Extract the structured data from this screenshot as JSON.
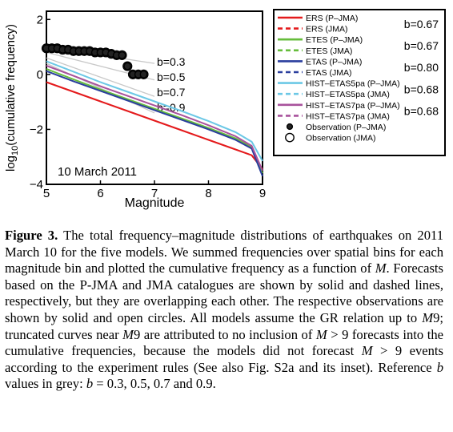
{
  "chart_data": {
    "type": "line",
    "xlabel": "Magnitude",
    "ylabel_pre": "log",
    "ylabel_sub": "10",
    "ylabel_post": "(cumulative frequency)",
    "annotation": "10 March 2011",
    "xlim": [
      5,
      9
    ],
    "ylim": [
      -4,
      2.3
    ],
    "xticks": [
      5,
      6,
      7,
      8,
      9
    ],
    "yticks": [
      {
        "v": 2,
        "label": "2"
      },
      {
        "v": 0,
        "label": "0"
      },
      {
        "v": -2,
        "label": "−2"
      },
      {
        "v": -4,
        "label": "−4"
      }
    ],
    "grid": false,
    "legend_position": "right",
    "reference_lines": [
      {
        "b": 0.3,
        "label": "b=0.3",
        "x": [
          5,
          7.0
        ],
        "y": [
          1.0,
          0.4
        ]
      },
      {
        "b": 0.5,
        "label": "b=0.5",
        "x": [
          5,
          7.0
        ],
        "y": [
          0.8,
          -0.2
        ]
      },
      {
        "b": 0.7,
        "label": "b=0.7",
        "x": [
          5,
          7.0
        ],
        "y": [
          0.6,
          -0.8
        ]
      },
      {
        "b": 0.9,
        "label": "b=0.9",
        "x": [
          5,
          7.0
        ],
        "y": [
          0.4,
          -1.4
        ]
      }
    ],
    "series": [
      {
        "name": "ERS (P–JMA)",
        "color": "#e41a1c",
        "dash": false,
        "x": [
          5.0,
          5.5,
          6.0,
          6.5,
          7.0,
          7.5,
          8.0,
          8.5,
          8.8,
          9.0
        ],
        "y": [
          -0.28,
          -0.63,
          -0.98,
          -1.33,
          -1.68,
          -2.03,
          -2.38,
          -2.73,
          -2.94,
          -3.45
        ]
      },
      {
        "name": "ERS (JMA)",
        "color": "#e41a1c",
        "dash": true,
        "x": [
          5.0,
          5.5,
          6.0,
          6.5,
          7.0,
          7.5,
          8.0,
          8.5,
          8.8,
          9.0
        ],
        "y": [
          -0.28,
          -0.63,
          -0.98,
          -1.33,
          -1.68,
          -2.03,
          -2.38,
          -2.73,
          -2.94,
          -3.45
        ]
      },
      {
        "name": "ETES (P–JMA)",
        "color": "#66bd3c",
        "dash": false,
        "x": [
          5.0,
          5.5,
          6.0,
          6.5,
          7.0,
          7.5,
          8.0,
          8.5,
          8.8,
          9.0
        ],
        "y": [
          0.2,
          -0.18,
          -0.55,
          -0.9,
          -1.25,
          -1.6,
          -1.95,
          -2.33,
          -2.65,
          -3.6
        ]
      },
      {
        "name": "ETES (JMA)",
        "color": "#66bd3c",
        "dash": true,
        "x": [
          5.0,
          5.5,
          6.0,
          6.5,
          7.0,
          7.5,
          8.0,
          8.5,
          8.8,
          9.0
        ],
        "y": [
          0.2,
          -0.18,
          -0.55,
          -0.9,
          -1.25,
          -1.6,
          -1.95,
          -2.33,
          -2.65,
          -3.6
        ]
      },
      {
        "name": "ETAS (P–JMA)",
        "color": "#2b3f9e",
        "dash": false,
        "x": [
          5.0,
          5.5,
          6.0,
          6.5,
          7.0,
          7.5,
          8.0,
          8.5,
          8.8,
          9.0
        ],
        "y": [
          0.12,
          -0.25,
          -0.6,
          -0.95,
          -1.3,
          -1.65,
          -2.0,
          -2.38,
          -2.7,
          -3.7
        ]
      },
      {
        "name": "ETAS (JMA)",
        "color": "#2b3f9e",
        "dash": true,
        "x": [
          5.0,
          5.5,
          6.0,
          6.5,
          7.0,
          7.5,
          8.0,
          8.5,
          8.8,
          9.0
        ],
        "y": [
          0.12,
          -0.25,
          -0.6,
          -0.95,
          -1.3,
          -1.65,
          -2.0,
          -2.38,
          -2.7,
          -3.7
        ]
      },
      {
        "name": "HIST–ETAS5pa (P–JMA)",
        "color": "#6cc8e6",
        "dash": false,
        "x": [
          5.0,
          5.5,
          6.0,
          6.5,
          7.0,
          7.5,
          8.0,
          8.5,
          8.8,
          9.0
        ],
        "y": [
          0.48,
          0.1,
          -0.28,
          -0.63,
          -0.98,
          -1.33,
          -1.7,
          -2.1,
          -2.45,
          -3.15
        ]
      },
      {
        "name": "HIST–ETAS5pa (JMA)",
        "color": "#6cc8e6",
        "dash": true,
        "x": [
          5.0,
          5.5,
          6.0,
          6.5,
          7.0,
          7.5,
          8.0,
          8.5,
          8.8,
          9.0
        ],
        "y": [
          0.48,
          0.1,
          -0.28,
          -0.63,
          -0.98,
          -1.33,
          -1.7,
          -2.1,
          -2.45,
          -3.15
        ]
      },
      {
        "name": "HIST–ETAS7pa (P–JMA)",
        "color": "#a8529c",
        "dash": false,
        "x": [
          5.0,
          5.5,
          6.0,
          6.5,
          7.0,
          7.5,
          8.0,
          8.5,
          8.8,
          9.0
        ],
        "y": [
          0.32,
          -0.05,
          -0.43,
          -0.78,
          -1.13,
          -1.48,
          -1.85,
          -2.25,
          -2.6,
          -3.5
        ]
      },
      {
        "name": "HIST–ETAS7pa (JMA)",
        "color": "#a8529c",
        "dash": true,
        "x": [
          5.0,
          5.5,
          6.0,
          6.5,
          7.0,
          7.5,
          8.0,
          8.5,
          8.8,
          9.0
        ],
        "y": [
          0.32,
          -0.05,
          -0.43,
          -0.78,
          -1.13,
          -1.48,
          -1.85,
          -2.25,
          -2.6,
          -3.5
        ]
      }
    ],
    "observations": [
      {
        "name": "Observation (P–JMA)",
        "filled": true,
        "x": [
          5.0,
          5.1,
          5.2,
          5.3,
          5.4,
          5.5,
          5.6,
          5.7,
          5.8,
          5.9,
          6.0,
          6.1,
          6.2,
          6.3,
          6.4,
          6.5,
          6.6,
          6.7,
          6.8
        ],
        "y": [
          0.95,
          0.95,
          0.95,
          0.9,
          0.9,
          0.85,
          0.85,
          0.85,
          0.85,
          0.8,
          0.8,
          0.8,
          0.75,
          0.7,
          0.7,
          0.3,
          0.0,
          0.0,
          0.0
        ]
      },
      {
        "name": "Observation (JMA)",
        "filled": false,
        "x": [
          5.0,
          5.1,
          5.2,
          5.3,
          5.4,
          5.5,
          5.6,
          5.7,
          5.8,
          5.9,
          6.0,
          6.1,
          6.2,
          6.3,
          6.4,
          6.5,
          6.6,
          6.7,
          6.8
        ],
        "y": [
          0.95,
          0.95,
          0.95,
          0.9,
          0.9,
          0.85,
          0.85,
          0.85,
          0.85,
          0.8,
          0.8,
          0.8,
          0.75,
          0.7,
          0.7,
          0.3,
          0.0,
          0.0,
          0.0
        ]
      }
    ],
    "legend_b_values": [
      {
        "text": "b=0.67"
      },
      {
        "text": "b=0.67"
      },
      {
        "text": "b=0.80"
      },
      {
        "text": "b=0.68"
      },
      {
        "text": "b=0.68"
      }
    ]
  },
  "caption": {
    "label": "Figure 3.",
    "p1": " The total frequency–magnitude distributions of earthquakes on 2011 March 10 for the five models. We summed frequencies over spatial bins for each magnitude bin and plotted the cumulative frequency as a function of ",
    "m1": "M",
    "p2": ". Forecasts based on the P-JMA and JMA catalogues are shown by solid and dashed lines, respectively, but they are overlapping each other. The respective observations are shown by solid and open circles. All models assume the GR relation up to ",
    "m2": "M",
    "p3": "9; truncated curves near ",
    "m3": "M",
    "p4": "9 are attributed to no inclusion of ",
    "m4": "M",
    "p5": " > 9 forecasts into the cumulative frequencies, because the models did not forecast ",
    "m5": "M",
    "p6": " > 9 events according to the experiment rules (See also Fig. S2a and its inset). Reference ",
    "m6": "b",
    "p7": " values in grey: ",
    "m7": "b",
    "p8": " = 0.3, 0.5, 0.7 and 0.9."
  }
}
